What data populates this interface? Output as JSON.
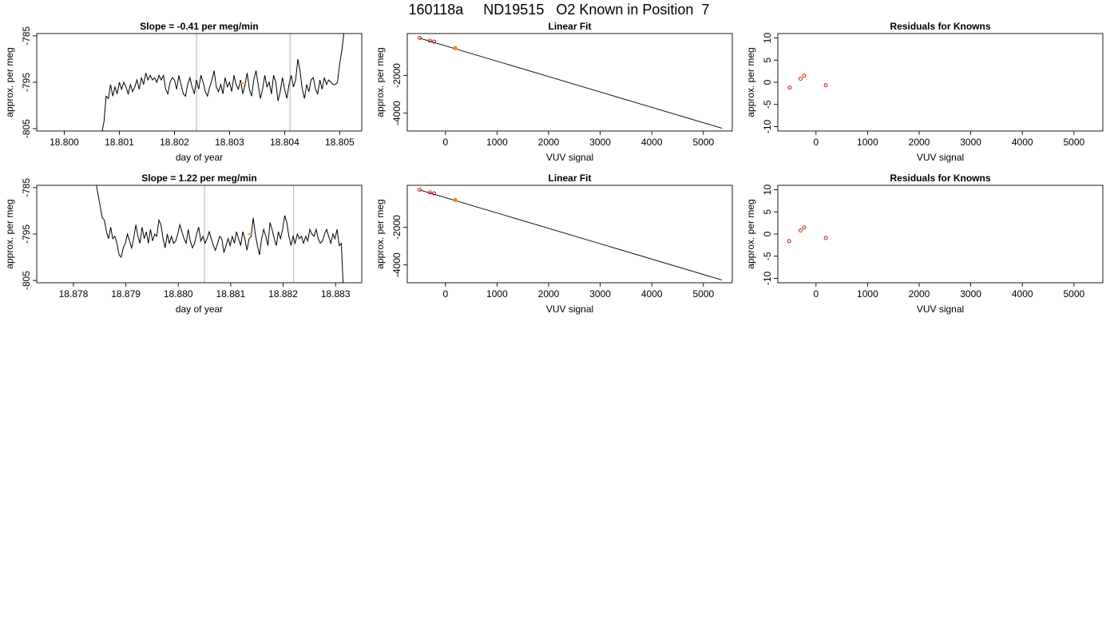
{
  "page_title": "160118a     ND19515   O2 Known in Position  7",
  "colors": {
    "line": "#000000",
    "vline": "#BEBEBE",
    "known_point": "#CD0000",
    "sample_point": "#FF8C00",
    "axis": "#000000"
  },
  "chart_data": [
    {
      "type": "line",
      "title": "Slope =  -0.41  per meg/min",
      "xlabel": "day of year",
      "ylabel": "approx. per meg",
      "xlim": [
        18.7995,
        18.8054
      ],
      "ylim": [
        -805.5,
        -784.5
      ],
      "xticks": [
        18.8,
        18.801,
        18.802,
        18.803,
        18.804,
        18.805
      ],
      "xtick_labels": [
        "18.800",
        "18.801",
        "18.802",
        "18.803",
        "18.804",
        "18.805"
      ],
      "yticks": [
        -785,
        -795,
        -805
      ],
      "ytick_labels": [
        "-785",
        "-795",
        "-805"
      ],
      "vlines": [
        18.8024,
        18.8041
      ],
      "highlight_point": {
        "x": 18.80322,
        "y": -795.2
      },
      "series": [
        {
          "x": [
            18.80068,
            18.80072,
            18.80076,
            18.8008,
            18.80084,
            18.80088,
            18.80092,
            18.80096,
            18.801,
            18.80104,
            18.80108,
            18.80112,
            18.80116,
            18.8012,
            18.80124,
            18.80128,
            18.80132,
            18.80136,
            18.8014,
            18.80144,
            18.80148,
            18.80152,
            18.80156,
            18.8016,
            18.80164,
            18.80168,
            18.80172,
            18.80176,
            18.8018,
            18.80184,
            18.80188,
            18.80192,
            18.80196,
            18.802,
            18.80204,
            18.80208,
            18.80212,
            18.80216,
            18.8022,
            18.80224,
            18.80228,
            18.80232,
            18.80236,
            18.8024,
            18.80244,
            18.80248,
            18.80252,
            18.80256,
            18.8026,
            18.80264,
            18.80268,
            18.80272,
            18.80276,
            18.8028,
            18.80284,
            18.80288,
            18.80292,
            18.80296,
            18.803,
            18.80304,
            18.80308,
            18.80312,
            18.80316,
            18.8032,
            18.80324,
            18.80328,
            18.80332,
            18.80336,
            18.8034,
            18.80344,
            18.80348,
            18.80352,
            18.80356,
            18.8036,
            18.80364,
            18.80368,
            18.80372,
            18.80376,
            18.8038,
            18.80384,
            18.80388,
            18.80392,
            18.80396,
            18.804,
            18.80404,
            18.80408,
            18.80412,
            18.80416,
            18.8042,
            18.80424,
            18.80428,
            18.80432,
            18.80436,
            18.8044,
            18.80444,
            18.80448,
            18.80452,
            18.80456,
            18.8046,
            18.80464,
            18.80468,
            18.80472,
            18.80476,
            18.8048,
            18.80484,
            18.80488,
            18.80492,
            18.80496,
            18.805,
            18.80504,
            18.80508
          ],
          "y": [
            -806,
            -803.5,
            -798,
            -798.5,
            -795.5,
            -798,
            -796,
            -797.5,
            -795,
            -796.5,
            -795,
            -796,
            -797.5,
            -795.5,
            -797,
            -796,
            -794.5,
            -796.5,
            -794,
            -795.5,
            -793,
            -794.5,
            -793.5,
            -794.5,
            -794,
            -795,
            -793.5,
            -794.5,
            -793.5,
            -796.5,
            -797.5,
            -795,
            -794,
            -794.5,
            -796.5,
            -793.5,
            -795.5,
            -797.5,
            -798,
            -795.5,
            -794,
            -796,
            -797.5,
            -794.5,
            -796.5,
            -793.5,
            -795,
            -797,
            -798,
            -796,
            -794.5,
            -792.5,
            -796,
            -797,
            -795.5,
            -797.5,
            -794,
            -796,
            -795,
            -797,
            -793.5,
            -795.5,
            -796.5,
            -794.5,
            -797.5,
            -795.5,
            -793,
            -796.5,
            -798,
            -794.5,
            -792.5,
            -795.5,
            -798.5,
            -796.5,
            -793.5,
            -796,
            -795,
            -797.5,
            -793.5,
            -795,
            -799,
            -797,
            -794,
            -796.5,
            -798.5,
            -795.5,
            -793.5,
            -796,
            -794.5,
            -790,
            -792.5,
            -796.5,
            -798.5,
            -795.5,
            -797,
            -794.5,
            -794,
            -796.5,
            -797.5,
            -794.5,
            -796.5,
            -794,
            -795.5,
            -794.5,
            -795,
            -795.5,
            -795.5,
            -795,
            -791,
            -788,
            -784
          ]
        }
      ]
    },
    {
      "type": "scatter",
      "title": "Linear Fit",
      "xlabel": "VUV signal",
      "ylabel": "approx. per meg",
      "xlim": [
        -740,
        5560
      ],
      "ylim": [
        -4950,
        230
      ],
      "xticks": [
        0,
        1000,
        2000,
        3000,
        4000,
        5000
      ],
      "xtick_labels": [
        "0",
        "1000",
        "2000",
        "3000",
        "4000",
        "5000"
      ],
      "yticks": [
        -2000,
        -4000
      ],
      "ytick_labels": [
        "-2000",
        "-4000"
      ],
      "fit_line": {
        "x": [
          -500,
          5360
        ],
        "y": [
          -15,
          -4805
        ]
      },
      "known_points": {
        "x": [
          -500,
          -300,
          -220,
          190
        ],
        "y": [
          0,
          -145,
          -200,
          -545
        ]
      },
      "sample_point": {
        "x": 195,
        "y": -548
      }
    },
    {
      "type": "scatter",
      "title": "Residuals for Knowns",
      "xlabel": "VUV signal",
      "ylabel": "approx. per meg",
      "xlim": [
        -740,
        5560
      ],
      "ylim": [
        -11,
        11
      ],
      "xticks": [
        0,
        1000,
        2000,
        3000,
        4000,
        5000
      ],
      "xtick_labels": [
        "0",
        "1000",
        "2000",
        "3000",
        "4000",
        "5000"
      ],
      "yticks": [
        10,
        5,
        0,
        -5,
        -10
      ],
      "ytick_labels": [
        "10",
        "5",
        "0",
        "-5",
        "-10"
      ],
      "known_points": {
        "x": [
          -510,
          -300,
          -230,
          190
        ],
        "y": [
          -1.2,
          0.8,
          1.5,
          -0.7
        ]
      }
    },
    {
      "type": "line",
      "title": "Slope =  1.22  per meg/min",
      "xlabel": "day of year",
      "ylabel": "approx. per meg",
      "xlim": [
        18.8773,
        18.8835
      ],
      "ylim": [
        -805.5,
        -784.5
      ],
      "xticks": [
        18.878,
        18.879,
        18.88,
        18.881,
        18.882,
        18.883
      ],
      "xtick_labels": [
        "18.878",
        "18.879",
        "18.880",
        "18.881",
        "18.882",
        "18.883"
      ],
      "yticks": [
        -785,
        -795,
        -805
      ],
      "ytick_labels": [
        "-785",
        "-795",
        "-805"
      ],
      "vlines": [
        18.8805,
        18.8822
      ],
      "highlight_point": {
        "x": 18.88136,
        "y": -795.0
      },
      "series": [
        {
          "x": [
            18.87843,
            18.87847,
            18.87851,
            18.87855,
            18.87859,
            18.87863,
            18.87867,
            18.87871,
            18.87875,
            18.87879,
            18.87883,
            18.87887,
            18.87891,
            18.87895,
            18.87899,
            18.87903,
            18.87907,
            18.87911,
            18.87915,
            18.87919,
            18.87923,
            18.87927,
            18.87931,
            18.87935,
            18.87939,
            18.87943,
            18.87947,
            18.87951,
            18.87955,
            18.87959,
            18.87963,
            18.87967,
            18.87971,
            18.87975,
            18.87979,
            18.87983,
            18.87987,
            18.87991,
            18.87995,
            18.87999,
            18.88003,
            18.88007,
            18.88011,
            18.88015,
            18.88019,
            18.88023,
            18.88027,
            18.88031,
            18.88035,
            18.88039,
            18.88043,
            18.88047,
            18.88051,
            18.88055,
            18.88059,
            18.88063,
            18.88067,
            18.88071,
            18.88075,
            18.88079,
            18.88083,
            18.88087,
            18.88091,
            18.88095,
            18.88099,
            18.88103,
            18.88107,
            18.88111,
            18.88115,
            18.88119,
            18.88123,
            18.88127,
            18.88131,
            18.88135,
            18.88139,
            18.88143,
            18.88147,
            18.88151,
            18.88155,
            18.88159,
            18.88163,
            18.88167,
            18.88171,
            18.88175,
            18.88179,
            18.88183,
            18.88187,
            18.88191,
            18.88195,
            18.88199,
            18.88203,
            18.88207,
            18.88211,
            18.88215,
            18.88219,
            18.88223,
            18.88227,
            18.88231,
            18.88235,
            18.88239,
            18.88243,
            18.88247,
            18.88251,
            18.88255,
            18.88259,
            18.88263,
            18.88267,
            18.88271,
            18.88275,
            18.88279,
            18.88283,
            18.88287,
            18.88291,
            18.88295,
            18.88299,
            18.88303,
            18.88307,
            18.88311,
            18.88315
          ],
          "y": [
            -784,
            -786.5,
            -789,
            -791.5,
            -792,
            -794.5,
            -796,
            -793.5,
            -796,
            -795.5,
            -797,
            -799.5,
            -800,
            -798,
            -797,
            -795,
            -796.5,
            -798,
            -796,
            -793,
            -795.5,
            -797,
            -793.5,
            -796,
            -794.5,
            -797,
            -794,
            -796.5,
            -795,
            -795.5,
            -792,
            -793,
            -796,
            -798,
            -795,
            -797,
            -795.5,
            -797,
            -796.5,
            -795,
            -793,
            -794.5,
            -796,
            -797,
            -794,
            -796.5,
            -798,
            -797,
            -795,
            -793.5,
            -796.5,
            -795.5,
            -797,
            -796,
            -794.5,
            -796,
            -797.5,
            -798.5,
            -797,
            -795.5,
            -796,
            -799,
            -797.5,
            -796,
            -797.5,
            -795.5,
            -797,
            -794.5,
            -796,
            -797.5,
            -794.5,
            -796,
            -798.5,
            -796,
            -795.5,
            -791.5,
            -795,
            -797.5,
            -799.5,
            -796,
            -794,
            -795.5,
            -797.5,
            -792.5,
            -794,
            -796,
            -797.5,
            -794.5,
            -796,
            -794,
            -791,
            -792.5,
            -795.5,
            -797.5,
            -795.5,
            -797,
            -795,
            -796,
            -795.5,
            -797,
            -795.5,
            -796.5,
            -794,
            -795,
            -795.5,
            -794,
            -796,
            -797,
            -796.5,
            -795,
            -794,
            -795.5,
            -797,
            -795,
            -796,
            -794,
            -797.5,
            -797,
            -807
          ]
        }
      ]
    },
    {
      "type": "scatter",
      "title": "Linear Fit",
      "xlabel": "VUV signal",
      "ylabel": "approx. per meg",
      "xlim": [
        -740,
        5560
      ],
      "ylim": [
        -4950,
        230
      ],
      "xticks": [
        0,
        1000,
        2000,
        3000,
        4000,
        5000
      ],
      "xtick_labels": [
        "0",
        "1000",
        "2000",
        "3000",
        "4000",
        "5000"
      ],
      "yticks": [
        -2000,
        -4000
      ],
      "ytick_labels": [
        "-2000",
        "-4000"
      ],
      "fit_line": {
        "x": [
          -500,
          5360
        ],
        "y": [
          -15,
          -4805
        ]
      },
      "known_points": {
        "x": [
          -500,
          -300,
          -220,
          190
        ],
        "y": [
          0,
          -145,
          -200,
          -545
        ]
      },
      "sample_point": {
        "x": 195,
        "y": -548
      }
    },
    {
      "type": "scatter",
      "title": "Residuals for Knowns",
      "xlabel": "VUV signal",
      "ylabel": "approx. per meg",
      "xlim": [
        -740,
        5560
      ],
      "ylim": [
        -11,
        11
      ],
      "xticks": [
        0,
        1000,
        2000,
        3000,
        4000,
        5000
      ],
      "xtick_labels": [
        "0",
        "1000",
        "2000",
        "3000",
        "4000",
        "5000"
      ],
      "yticks": [
        10,
        5,
        0,
        -5,
        -10
      ],
      "ytick_labels": [
        "10",
        "5",
        "0",
        "-5",
        "-10"
      ],
      "known_points": {
        "x": [
          -520,
          -300,
          -230,
          190
        ],
        "y": [
          -1.6,
          0.8,
          1.5,
          -0.9
        ]
      }
    }
  ]
}
